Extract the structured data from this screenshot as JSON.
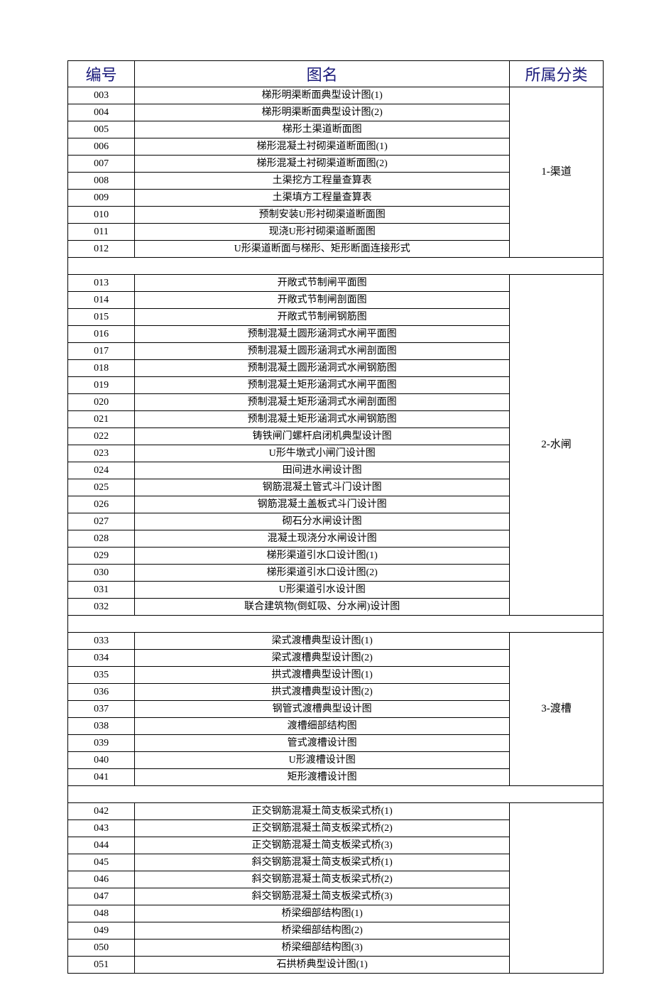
{
  "headers": {
    "code": "编号",
    "name": "图名",
    "category": "所属分类"
  },
  "columns": {
    "code_width": "12.5%",
    "name_width": "70%",
    "category_width": "17.5%"
  },
  "colors": {
    "header_text": "#1a1a7a",
    "border": "#000000",
    "background": "#ffffff",
    "body_text": "#000000"
  },
  "typography": {
    "header_fontsize": 22,
    "body_fontsize": 14,
    "header_font": "KaiTi",
    "body_font": "SimSun"
  },
  "groups": [
    {
      "category": "1-渠道",
      "rows": [
        {
          "code": "003",
          "name": "梯形明渠断面典型设计图(1)"
        },
        {
          "code": "004",
          "name": "梯形明渠断面典型设计图(2)"
        },
        {
          "code": "005",
          "name": "梯形土渠道断面图"
        },
        {
          "code": "006",
          "name": "梯形混凝土衬砌渠道断面图(1)"
        },
        {
          "code": "007",
          "name": "梯形混凝土衬砌渠道断面图(2)"
        },
        {
          "code": "008",
          "name": "土渠挖方工程量查算表"
        },
        {
          "code": "009",
          "name": "土渠填方工程量查算表"
        },
        {
          "code": "010",
          "name": "预制安装U形衬砌渠道断面图"
        },
        {
          "code": "011",
          "name": "现浇U形衬砌渠道断面图"
        },
        {
          "code": "012",
          "name": "U形渠道断面与梯形、矩形断面连接形式"
        }
      ]
    },
    {
      "category": "2-水闸",
      "rows": [
        {
          "code": "013",
          "name": "开敞式节制闸平面图"
        },
        {
          "code": "014",
          "name": "开敞式节制闸剖面图"
        },
        {
          "code": "015",
          "name": "开敞式节制闸钢筋图"
        },
        {
          "code": "016",
          "name": "预制混凝土圆形涵洞式水闸平面图"
        },
        {
          "code": "017",
          "name": "预制混凝土圆形涵洞式水闸剖面图"
        },
        {
          "code": "018",
          "name": "预制混凝土圆形涵洞式水闸钢筋图"
        },
        {
          "code": "019",
          "name": "预制混凝土矩形涵洞式水闸平面图"
        },
        {
          "code": "020",
          "name": "预制混凝土矩形涵洞式水闸剖面图"
        },
        {
          "code": "021",
          "name": "预制混凝土矩形涵洞式水闸钢筋图"
        },
        {
          "code": "022",
          "name": "铸铁闸门螺杆启闭机典型设计图"
        },
        {
          "code": "023",
          "name": "U形牛墩式小闸门设计图"
        },
        {
          "code": "024",
          "name": "田间进水闸设计图"
        },
        {
          "code": "025",
          "name": "钢筋混凝土管式斗门设计图"
        },
        {
          "code": "026",
          "name": "钢筋混凝土盖板式斗门设计图"
        },
        {
          "code": "027",
          "name": "砌石分水闸设计图"
        },
        {
          "code": "028",
          "name": "混凝土现浇分水闸设计图"
        },
        {
          "code": "029",
          "name": "梯形渠道引水口设计图(1)"
        },
        {
          "code": "030",
          "name": "梯形渠道引水口设计图(2)"
        },
        {
          "code": "031",
          "name": "U形渠道引水设计图"
        },
        {
          "code": "032",
          "name": "联合建筑物(倒虹吸、分水闸)设计图"
        }
      ]
    },
    {
      "category": "3-渡槽",
      "rows": [
        {
          "code": "033",
          "name": "梁式渡槽典型设计图(1)"
        },
        {
          "code": "034",
          "name": "梁式渡槽典型设计图(2)"
        },
        {
          "code": "035",
          "name": "拱式渡槽典型设计图(1)"
        },
        {
          "code": "036",
          "name": "拱式渡槽典型设计图(2)"
        },
        {
          "code": "037",
          "name": "钢管式渡槽典型设计图"
        },
        {
          "code": "038",
          "name": "渡槽细部结构图"
        },
        {
          "code": "039",
          "name": "管式渡槽设计图"
        },
        {
          "code": "040",
          "name": "U形渡槽设计图"
        },
        {
          "code": "041",
          "name": "矩形渡槽设计图"
        }
      ]
    },
    {
      "category": "",
      "rows": [
        {
          "code": "042",
          "name": "正交钢筋混凝土简支板梁式桥(1)"
        },
        {
          "code": "043",
          "name": "正交钢筋混凝土简支板梁式桥(2)"
        },
        {
          "code": "044",
          "name": "正交钢筋混凝土简支板梁式桥(3)"
        },
        {
          "code": "045",
          "name": "斜交钢筋混凝土简支板梁式桥(1)"
        },
        {
          "code": "046",
          "name": "斜交钢筋混凝土简支板梁式桥(2)"
        },
        {
          "code": "047",
          "name": "斜交钢筋混凝土简支板梁式桥(3)"
        },
        {
          "code": "048",
          "name": "桥梁细部结构图(1)"
        },
        {
          "code": "049",
          "name": "桥梁细部结构图(2)"
        },
        {
          "code": "050",
          "name": "桥梁细部结构图(3)"
        },
        {
          "code": "051",
          "name": "石拱桥典型设计图(1)"
        }
      ]
    }
  ]
}
